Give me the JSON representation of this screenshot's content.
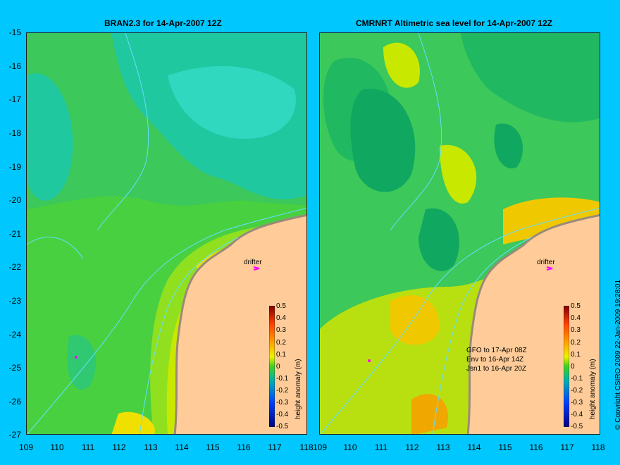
{
  "left_panel": {
    "title": "BRAN2.3 for 14-Apr-2007 12Z"
  },
  "right_panel": {
    "title": "CMRNRT Altimetric sea level  for 14-Apr-2007 12Z",
    "legend": [
      "GFO to 17-Apr 08Z",
      "Env to 16-Apr 14Z",
      "Jsn1 to 16-Apr 20Z"
    ]
  },
  "y_axis": {
    "ticks": [
      "-15",
      "-16",
      "-17",
      "-18",
      "-19",
      "-20",
      "-21",
      "-22",
      "-23",
      "-24",
      "-25",
      "-26",
      "-27"
    ]
  },
  "x_axis": {
    "ticks": [
      "109",
      "110",
      "111",
      "112",
      "113",
      "114",
      "115",
      "116",
      "117",
      "118"
    ]
  },
  "colorbar": {
    "title": "height anomaly (m)",
    "ticks": [
      "0.5",
      "0.4",
      "0.3",
      "0.2",
      "0.1",
      "0",
      "-0.1",
      "-0.2",
      "-0.3",
      "-0.4",
      "-0.5"
    ]
  },
  "drifter_label": "drifter",
  "copyright": "© Copyright CSIRO 2009   22-Jan-2009 19:28:01",
  "colors": {
    "background": "#00c8ff",
    "land": "#ffcc99",
    "coast": "#b0a090",
    "drifter": "#ff00ff"
  }
}
